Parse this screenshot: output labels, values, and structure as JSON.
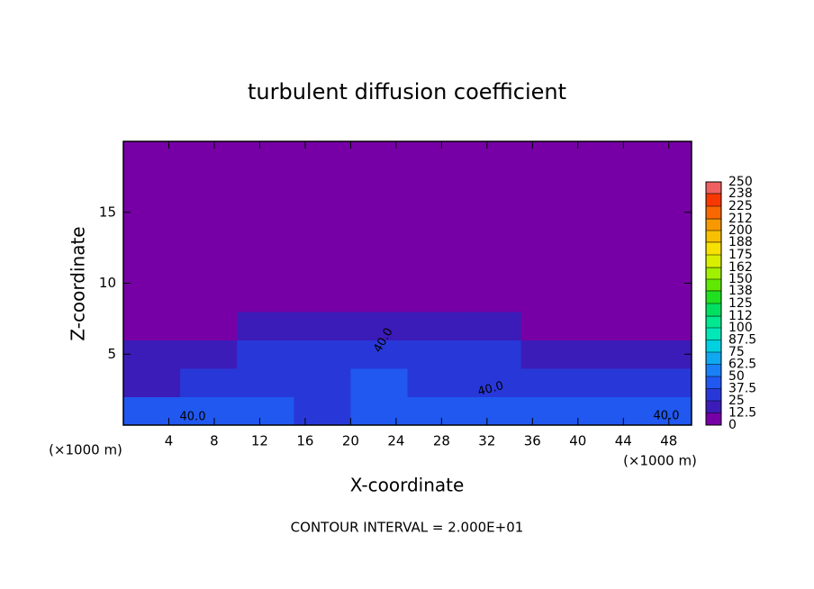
{
  "chart_data": {
    "type": "heatmap",
    "title": "turbulent diffusion coefficient",
    "x_label": "X-coordinate",
    "y_label": "Z-coordinate",
    "x_unit": "(×1000 m)",
    "footnote": "CONTOUR INTERVAL = 2.000E+01",
    "xlim": [
      0,
      50
    ],
    "ylim": [
      0,
      20
    ],
    "xticks": [
      4,
      8,
      12,
      16,
      20,
      24,
      28,
      32,
      36,
      40,
      44,
      48
    ],
    "yticks": [
      5,
      10,
      15
    ],
    "x_edges": [
      0,
      5,
      10,
      15,
      20,
      25,
      30,
      35,
      40,
      45,
      50
    ],
    "z_edges": [
      0,
      2,
      4,
      6,
      8,
      10,
      12,
      14,
      16,
      18,
      20
    ],
    "values": [
      [
        38,
        42,
        40,
        36,
        44,
        40,
        42,
        40,
        38,
        40
      ],
      [
        22,
        26,
        30,
        34,
        38,
        30,
        34,
        36,
        28,
        30
      ],
      [
        14,
        18,
        28,
        30,
        32,
        26,
        28,
        24,
        20,
        22
      ],
      [
        4,
        6,
        14,
        18,
        24,
        20,
        16,
        10,
        6,
        6
      ],
      [
        0,
        0,
        0,
        2,
        4,
        2,
        0,
        0,
        0,
        0
      ],
      [
        0,
        0,
        0,
        0,
        0,
        0,
        0,
        0,
        0,
        0
      ],
      [
        0,
        0,
        0,
        0,
        0,
        0,
        0,
        0,
        0,
        0
      ],
      [
        0,
        0,
        0,
        0,
        0,
        0,
        0,
        0,
        0,
        0
      ],
      [
        0,
        0,
        0,
        0,
        0,
        0,
        0,
        0,
        0,
        0
      ],
      [
        0,
        0,
        0,
        0,
        0,
        0,
        0,
        0,
        0,
        0
      ]
    ],
    "levels": [
      0,
      12.5,
      25,
      37.5,
      50,
      62.5,
      75,
      87.5,
      100,
      112,
      125,
      138,
      150,
      162,
      175,
      188,
      200,
      212,
      225,
      238,
      250
    ],
    "colors": [
      "#7600a6",
      "#3c1cb8",
      "#2838d8",
      "#2058f0",
      "#1a80f8",
      "#10a8f0",
      "#00d0e0",
      "#00e8b8",
      "#00e890",
      "#00e060",
      "#20e020",
      "#60e800",
      "#a0f000",
      "#d8f000",
      "#f8e000",
      "#f8c000",
      "#f89800",
      "#f86800",
      "#f83800",
      "#f06060"
    ],
    "annotations": [
      "40.0",
      "40.0",
      "40.0",
      "40.0"
    ]
  }
}
